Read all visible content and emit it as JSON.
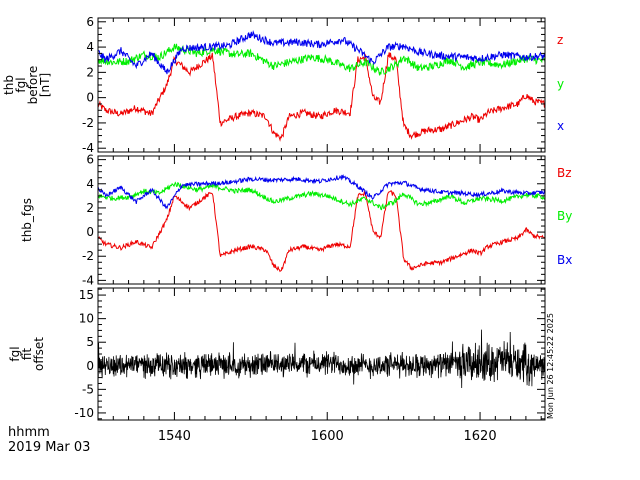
{
  "time_axis": {
    "ticks": [
      "1540",
      "1600",
      "1620"
    ],
    "label_line1": "hhmm",
    "label_line2": "2019 Mar 03"
  },
  "side_stamp": "Mon Jun 26 12:45:22 2025",
  "chart_data": [
    {
      "type": "line",
      "ylabel_lines": [
        "thb",
        "fgl",
        "before",
        "[nT]"
      ],
      "ylim": [
        -4.3,
        6.3
      ],
      "yticks": [
        -4,
        -2,
        0,
        2,
        4,
        6
      ],
      "x_range": [
        1530.0,
        1628.5
      ],
      "series": [
        {
          "name": "z",
          "color": "#ee0000",
          "jitter": 0.28,
          "x": [
            1530,
            1531,
            1533,
            1535,
            1537,
            1539,
            1540,
            1541,
            1542,
            1544,
            1545,
            1546,
            1548,
            1550,
            1552,
            1553,
            1554,
            1555,
            1557,
            1559,
            1601,
            1603,
            1604,
            1605,
            1606,
            1607,
            1608,
            1609,
            1610,
            1611,
            1613,
            1615,
            1617,
            1619,
            1620,
            1621,
            1623,
            1625,
            1626,
            1627,
            1628.5
          ],
          "values": [
            -0.5,
            -1.0,
            -1.3,
            -0.8,
            -1.3,
            1.0,
            3.0,
            2.5,
            2.0,
            2.9,
            3.3,
            -2.0,
            -1.5,
            -1.2,
            -1.5,
            -2.8,
            -3.2,
            -1.5,
            -1.2,
            -1.5,
            -1.0,
            -1.2,
            3.0,
            3.2,
            0.0,
            -0.4,
            3.4,
            3.0,
            -2.2,
            -3.0,
            -2.6,
            -2.5,
            -2.0,
            -1.5,
            -1.8,
            -1.2,
            -0.8,
            -0.5,
            0.2,
            -0.3,
            -0.5
          ]
        },
        {
          "name": "y",
          "color": "#00ee00",
          "jitter": 0.32,
          "x": [
            1530,
            1532,
            1534,
            1536,
            1538,
            1540,
            1543,
            1545,
            1548,
            1550,
            1553,
            1555,
            1558,
            1600,
            1603,
            1605,
            1607,
            1609,
            1610,
            1612,
            1614,
            1616,
            1618,
            1620,
            1623,
            1626,
            1628.5
          ],
          "values": [
            3.0,
            2.8,
            2.9,
            3.4,
            3.2,
            4.0,
            3.5,
            3.8,
            3.4,
            3.5,
            2.5,
            2.8,
            3.2,
            3.0,
            2.3,
            2.8,
            2.0,
            2.6,
            3.2,
            2.3,
            2.5,
            3.0,
            2.4,
            2.8,
            2.6,
            3.1,
            2.9
          ]
        },
        {
          "name": "x",
          "color": "#0000ee",
          "jitter": 0.3,
          "x": [
            1530,
            1531,
            1533,
            1535,
            1537,
            1539,
            1541,
            1544,
            1547,
            1550,
            1553,
            1556,
            1559,
            1602,
            1604,
            1606,
            1608,
            1610,
            1612,
            1615,
            1618,
            1620,
            1623,
            1626,
            1628.5
          ],
          "values": [
            3.6,
            3.0,
            3.7,
            2.5,
            3.5,
            2.0,
            3.9,
            4.0,
            4.1,
            5.0,
            4.3,
            4.4,
            4.2,
            4.6,
            3.8,
            2.8,
            4.0,
            4.1,
            3.6,
            3.3,
            3.2,
            3.1,
            3.4,
            3.2,
            3.3
          ]
        }
      ]
    },
    {
      "type": "line",
      "ylabel_lines": [
        "thb_fgs"
      ],
      "ylim": [
        -4.3,
        6.3
      ],
      "yticks": [
        -4,
        -2,
        0,
        2,
        4,
        6
      ],
      "x_range": [
        1530.0,
        1628.5
      ],
      "series": [
        {
          "name": "Bz",
          "color": "#ee0000",
          "jitter": 0.18,
          "x": [
            1530,
            1531,
            1533,
            1535,
            1537,
            1539,
            1540,
            1541,
            1542,
            1544,
            1545,
            1546,
            1548,
            1550,
            1552,
            1553,
            1554,
            1555,
            1557,
            1559,
            1601,
            1603,
            1604,
            1605,
            1606,
            1607,
            1608,
            1609,
            1610,
            1611,
            1613,
            1615,
            1617,
            1619,
            1620,
            1621,
            1623,
            1625,
            1626,
            1627,
            1628.5
          ],
          "values": [
            -0.5,
            -1.0,
            -1.3,
            -0.8,
            -1.3,
            1.0,
            3.0,
            2.5,
            2.0,
            2.9,
            3.3,
            -2.0,
            -1.5,
            -1.2,
            -1.5,
            -2.8,
            -3.2,
            -1.5,
            -1.2,
            -1.5,
            -1.0,
            -1.2,
            3.0,
            3.2,
            0.0,
            -0.4,
            3.4,
            3.0,
            -2.2,
            -3.0,
            -2.6,
            -2.5,
            -2.0,
            -1.5,
            -1.8,
            -1.2,
            -0.8,
            -0.5,
            0.2,
            -0.3,
            -0.5
          ]
        },
        {
          "name": "By",
          "color": "#00ee00",
          "jitter": 0.2,
          "x": [
            1530,
            1532,
            1534,
            1536,
            1538,
            1540,
            1543,
            1545,
            1548,
            1550,
            1553,
            1555,
            1558,
            1600,
            1603,
            1605,
            1607,
            1609,
            1610,
            1612,
            1614,
            1616,
            1618,
            1620,
            1623,
            1626,
            1628.5
          ],
          "values": [
            3.0,
            2.8,
            2.9,
            3.4,
            3.2,
            4.0,
            3.5,
            3.8,
            3.4,
            3.5,
            2.5,
            2.8,
            3.2,
            3.0,
            2.3,
            2.8,
            2.0,
            2.6,
            3.2,
            2.3,
            2.5,
            3.0,
            2.4,
            2.8,
            2.6,
            3.1,
            2.9
          ]
        },
        {
          "name": "Bx",
          "color": "#0000ee",
          "jitter": 0.18,
          "x": [
            1530,
            1531,
            1533,
            1535,
            1537,
            1539,
            1541,
            1544,
            1547,
            1550,
            1553,
            1556,
            1559,
            1602,
            1604,
            1606,
            1608,
            1610,
            1612,
            1615,
            1618,
            1620,
            1623,
            1626,
            1628.5
          ],
          "values": [
            3.6,
            3.0,
            3.7,
            2.5,
            3.5,
            2.0,
            3.9,
            4.0,
            4.1,
            4.4,
            4.3,
            4.4,
            4.2,
            4.6,
            3.8,
            2.8,
            4.0,
            4.1,
            3.6,
            3.3,
            3.2,
            3.1,
            3.4,
            3.2,
            3.3
          ]
        }
      ]
    },
    {
      "type": "line",
      "ylabel_lines": [
        "fgl",
        "fit",
        "offset"
      ],
      "ylim": [
        -11.5,
        16.5
      ],
      "yticks": [
        -10,
        -5,
        0,
        5,
        10,
        15
      ],
      "x_range": [
        1530.0,
        1628.5
      ],
      "series": [
        {
          "color": "#000000",
          "noise": true,
          "amplitude": 2.6,
          "x": [
            1530,
            1535,
            1540,
            1545,
            1550,
            1555,
            1600,
            1605,
            1610,
            1615,
            1620,
            1623,
            1626,
            1628.5
          ],
          "values": [
            0.0,
            0.3,
            0.0,
            0.2,
            0.2,
            0.3,
            0.5,
            0.0,
            0.2,
            0.3,
            0.5,
            1.2,
            0.2,
            0.0
          ]
        }
      ]
    }
  ]
}
